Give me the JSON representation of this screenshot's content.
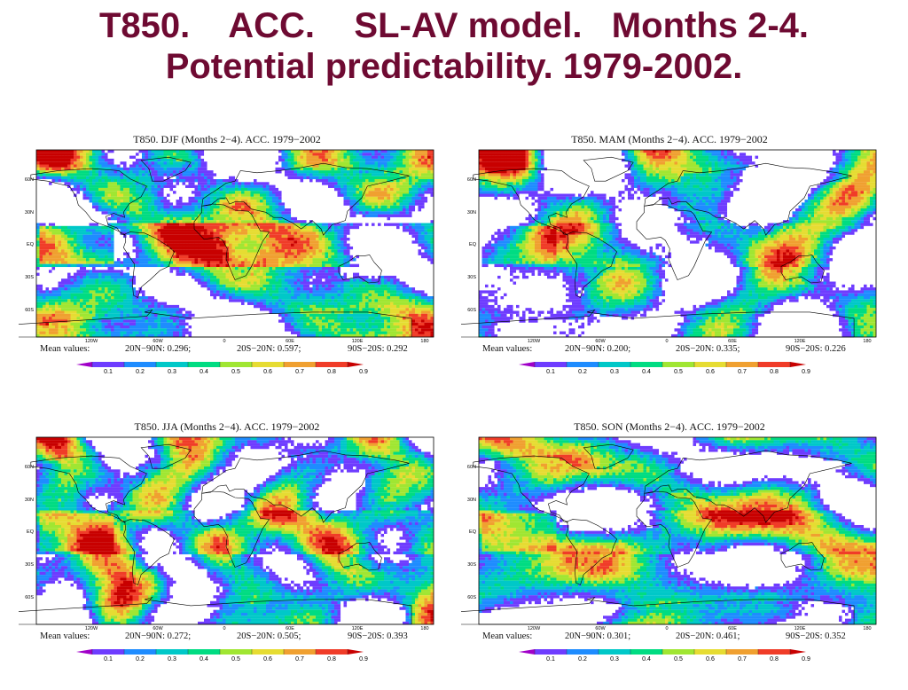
{
  "title": {
    "line1": "T850.    ACC.    SL-AV model.   Months 2-4.",
    "line2": "Potential predictability. 1979-2002."
  },
  "map_labels": {
    "lat": [
      "60N",
      "30N",
      "EQ",
      "30S",
      "60S"
    ],
    "lon": [
      "120W",
      "60W",
      "0",
      "60E",
      "120E",
      "180"
    ]
  },
  "colorbar": {
    "labels": [
      "0.1",
      "0.2",
      "0.3",
      "0.4",
      "0.5",
      "0.6",
      "0.7",
      "0.8",
      "0.9"
    ],
    "colors": [
      "#a000c8",
      "#6e3cff",
      "#1e8cff",
      "#00c8c8",
      "#00dc82",
      "#a0e632",
      "#e6dc32",
      "#f0a030",
      "#f03c28",
      "#c80000"
    ]
  },
  "panels": [
    {
      "title": "T850. DJF (Months 2−4). ACC. 1979−2002",
      "mean_label": "Mean values:",
      "nh": "20N−90N: 0.296;",
      "trop": "20S−20N: 0.597;",
      "sh": "90S−20S: 0.292"
    },
    {
      "title": "T850. MAM (Months 2−4). ACC. 1979−2002",
      "mean_label": "Mean values:",
      "nh": "20N−90N: 0.200;",
      "trop": "20S−20N: 0.335;",
      "sh": "90S−20S: 0.226"
    },
    {
      "title": "T850. JJA (Months 2−4). ACC. 1979−2002",
      "mean_label": "Mean values:",
      "nh": "20N−90N: 0.272;",
      "trop": "20S−20N: 0.505;",
      "sh": "90S−20S: 0.393"
    },
    {
      "title": "T850. SON (Months 2−4). ACC. 1979−2002",
      "mean_label": "Mean values:",
      "nh": "20N−90N: 0.301;",
      "trop": "20S−20N: 0.461;",
      "sh": "90S−20S: 0.352"
    }
  ]
}
